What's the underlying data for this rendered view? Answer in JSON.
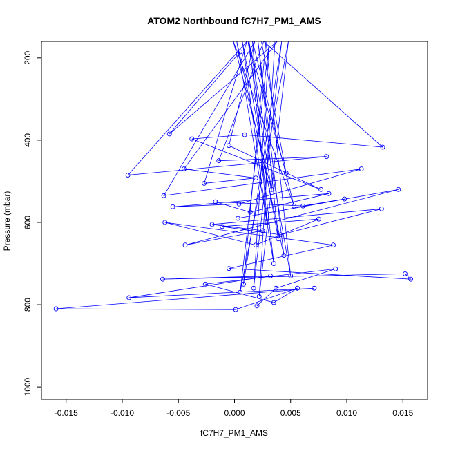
{
  "chart_data": {
    "type": "line",
    "title": "ATOM2 Northbound fC7H7_PM1_AMS",
    "xlabel": "fC7H7_PM1_AMS",
    "ylabel": "Pressure (mbar)",
    "xlim": [
      -0.0172,
      0.0172
    ],
    "ylim": [
      1030,
      160
    ],
    "y_reversed": true,
    "x_ticks": [
      -0.015,
      -0.01,
      -0.005,
      0.0,
      0.005,
      0.01,
      0.015
    ],
    "x_tick_labels": [
      "-0.015",
      "-0.010",
      "-0.005",
      "0.000",
      "0.005",
      "0.010",
      "0.015"
    ],
    "y_ticks": [
      200,
      400,
      600,
      800,
      1000
    ],
    "y_tick_labels": [
      "200",
      "400",
      "600",
      "800",
      "1000"
    ],
    "grid": false,
    "legend": "none",
    "series": [
      {
        "color": "#0000ff",
        "marker": "open-circle",
        "x": [
          0.0005,
          -0.0058,
          0.0038,
          -0.0045,
          0.0019,
          -0.0027,
          0.0011,
          -0.0095,
          0.0082,
          -0.0014,
          0.0026,
          0.0132,
          0.0009,
          -0.0038,
          0.0077,
          -0.0005,
          0.0018,
          -0.0063,
          0.0113,
          0.0004,
          -0.0055,
          0.0084,
          0.0014,
          -0.0017,
          0.0061,
          0.0098,
          0.0003,
          0.0146,
          -0.0044,
          0.0025,
          -0.002,
          0.0131,
          0.0041,
          -0.0011,
          0.0075,
          0.0019,
          -0.0062,
          0.0088,
          -0.0005,
          0.0157,
          0.0152,
          -0.0064,
          0.0032,
          -0.0094,
          0.0071,
          -0.0159,
          0.0001,
          0.0056,
          0.0035,
          -0.0026,
          0.009,
          0.0037,
          0.002
        ],
        "y": [
          185,
          385,
          160,
          470,
          492,
          505,
          160,
          485,
          440,
          450,
          160,
          417,
          387,
          397,
          520,
          413,
          160,
          535,
          470,
          555,
          562,
          530,
          575,
          550,
          560,
          543,
          590,
          520,
          655,
          620,
          605,
          567,
          630,
          610,
          592,
          655,
          600,
          655,
          712,
          738,
          725,
          738,
          730,
          783,
          760,
          810,
          812,
          760,
          795,
          750,
          713,
          760,
          803
        ]
      },
      {
        "color": "#0000ff",
        "marker": "open-circle",
        "x": [
          0.0024,
          0.0046,
          0.0012,
          0.0033,
          -0.0001,
          0.0053,
          0.0016,
          0.0029,
          0.0007,
          0.0039,
          0.0021,
          0.0044,
          0.0002,
          0.0035,
          0.0013,
          0.005,
          0.0028,
          0.0008,
          0.0042,
          0.0017,
          0.0031,
          0.0005,
          0.0048,
          0.0022,
          0.0036
        ],
        "y": [
          160,
          480,
          160,
          520,
          160,
          560,
          160,
          600,
          160,
          640,
          160,
          680,
          160,
          700,
          160,
          730,
          160,
          750,
          160,
          760,
          160,
          770,
          160,
          780,
          160
        ]
      }
    ]
  }
}
